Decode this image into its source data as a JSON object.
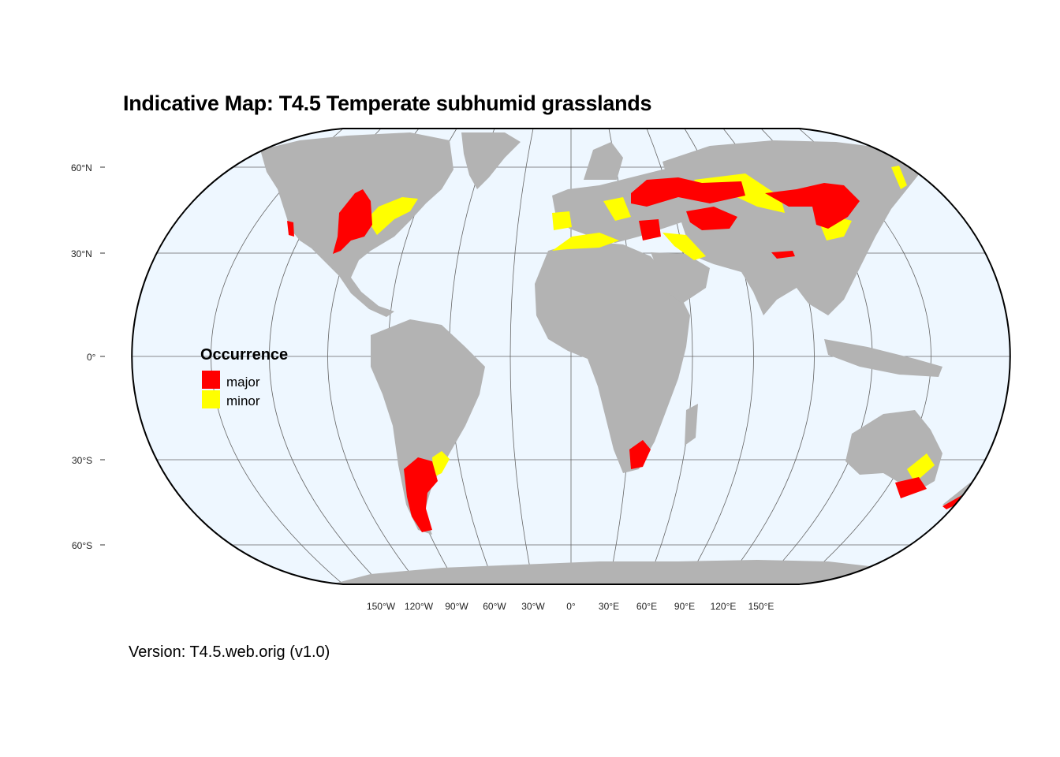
{
  "title": "Indicative Map: T4.5 Temperate subhumid grasslands",
  "caption": "Version: T4.5.web.orig (v1.0)",
  "colors": {
    "ocean": "#eef7ff",
    "land": "#b3b3b3",
    "major": "#ff0000",
    "minor": "#ffff00",
    "graticule": "#666666"
  },
  "legend": {
    "title": "Occurrence",
    "items": [
      {
        "label": "major",
        "color": "#ff0000"
      },
      {
        "label": "minor",
        "color": "#ffff00"
      }
    ]
  },
  "axes": {
    "lat_labels": [
      "60°N",
      "30°N",
      "0°",
      "30°S",
      "60°S"
    ],
    "lon_labels": [
      "150°W",
      "120°W",
      "90°W",
      "60°W",
      "30°W",
      "0°",
      "30°E",
      "60°E",
      "90°E",
      "120°E",
      "150°E"
    ]
  }
}
